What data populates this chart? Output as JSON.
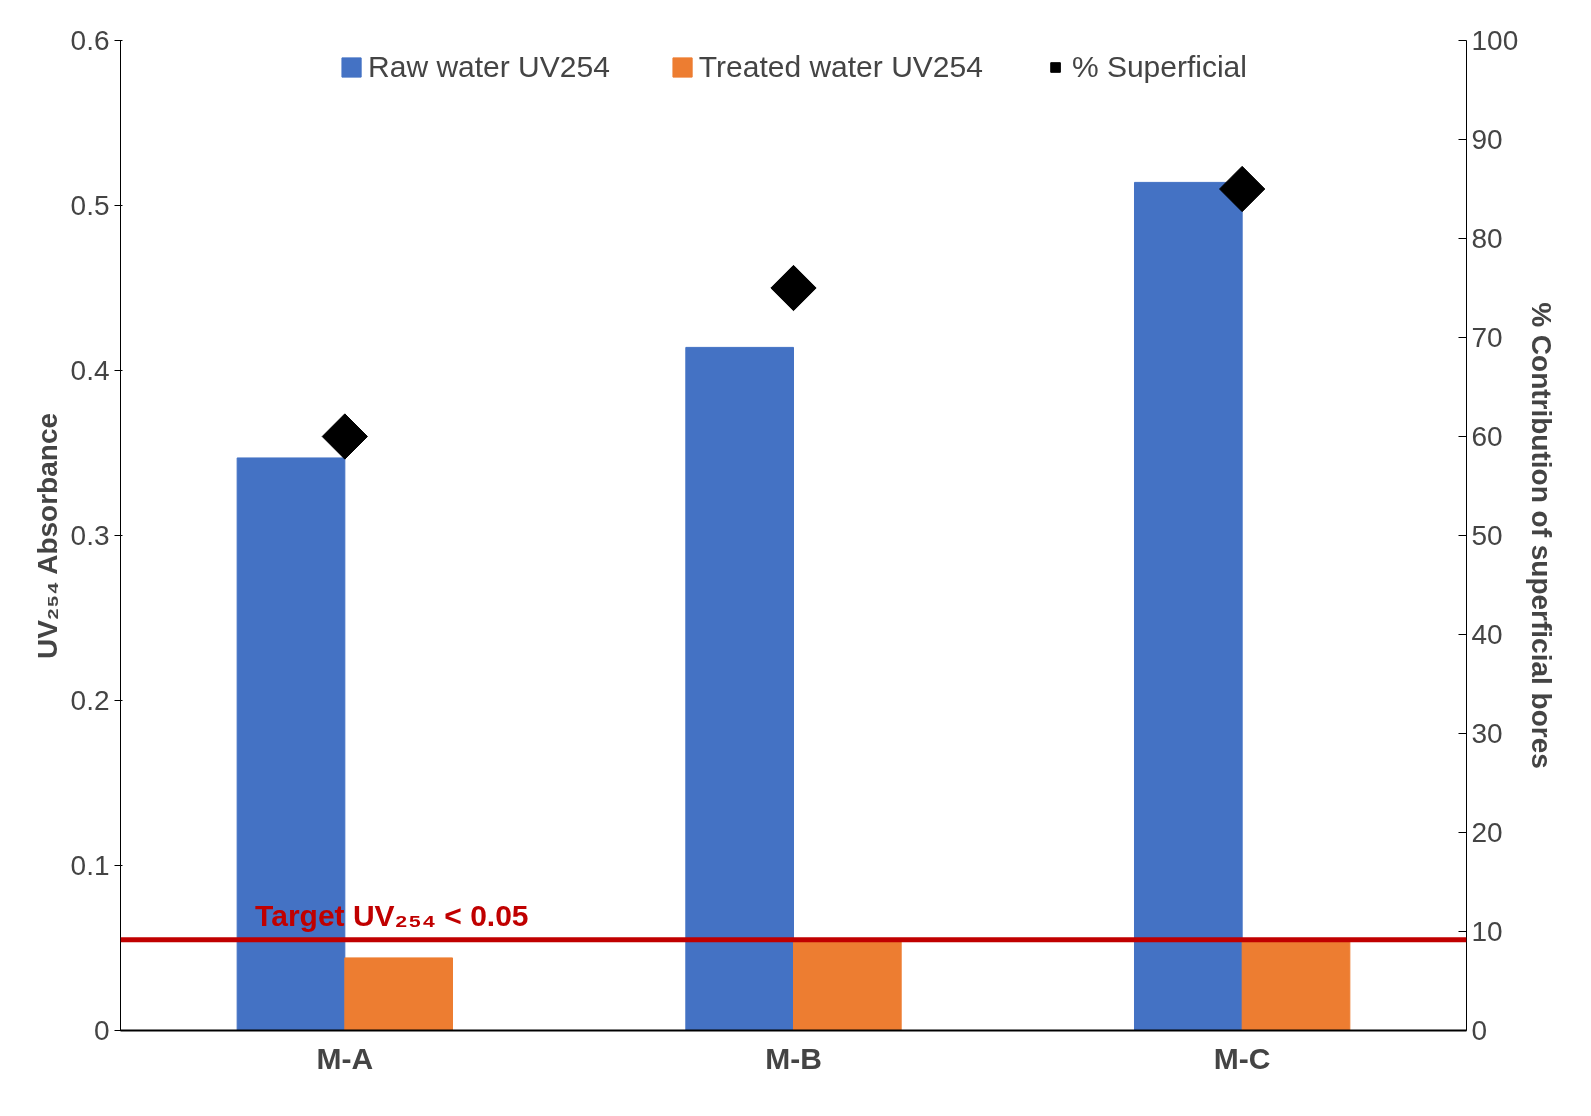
{
  "chart_data": {
    "type": "bar",
    "categories": [
      "M-A",
      "M-B",
      "M-C"
    ],
    "ylabel": "UV₂₅₄ Absorbance",
    "y2label": "% Contribution of superficial bores",
    "series": [
      {
        "name": "Raw water UV254",
        "color": "#4472c4",
        "values": [
          0.347,
          0.414,
          0.514
        ]
      },
      {
        "name": "Treated water UV254",
        "color": "#ed7d31",
        "values": [
          0.044,
          0.054,
          0.054
        ]
      },
      {
        "name": "% Superficial",
        "type": "scatter",
        "axis": "y2",
        "color": "#000000",
        "values": [
          60,
          75,
          85
        ]
      }
    ],
    "ylim": [
      0,
      0.6
    ],
    "yticks": [
      0,
      0.1,
      0.2,
      0.3,
      0.4,
      0.5,
      0.6
    ],
    "y2lim": [
      0,
      100
    ],
    "y2ticks": [
      0,
      10,
      20,
      30,
      40,
      50,
      60,
      70,
      80,
      90,
      100
    ],
    "ref_lines": [
      {
        "axis": "y",
        "value": 0.055,
        "label": "Target UV₂₅₄ < 0.05",
        "color": "#c00000"
      }
    ],
    "marker": "diamond",
    "grid": false,
    "legend": "top"
  }
}
